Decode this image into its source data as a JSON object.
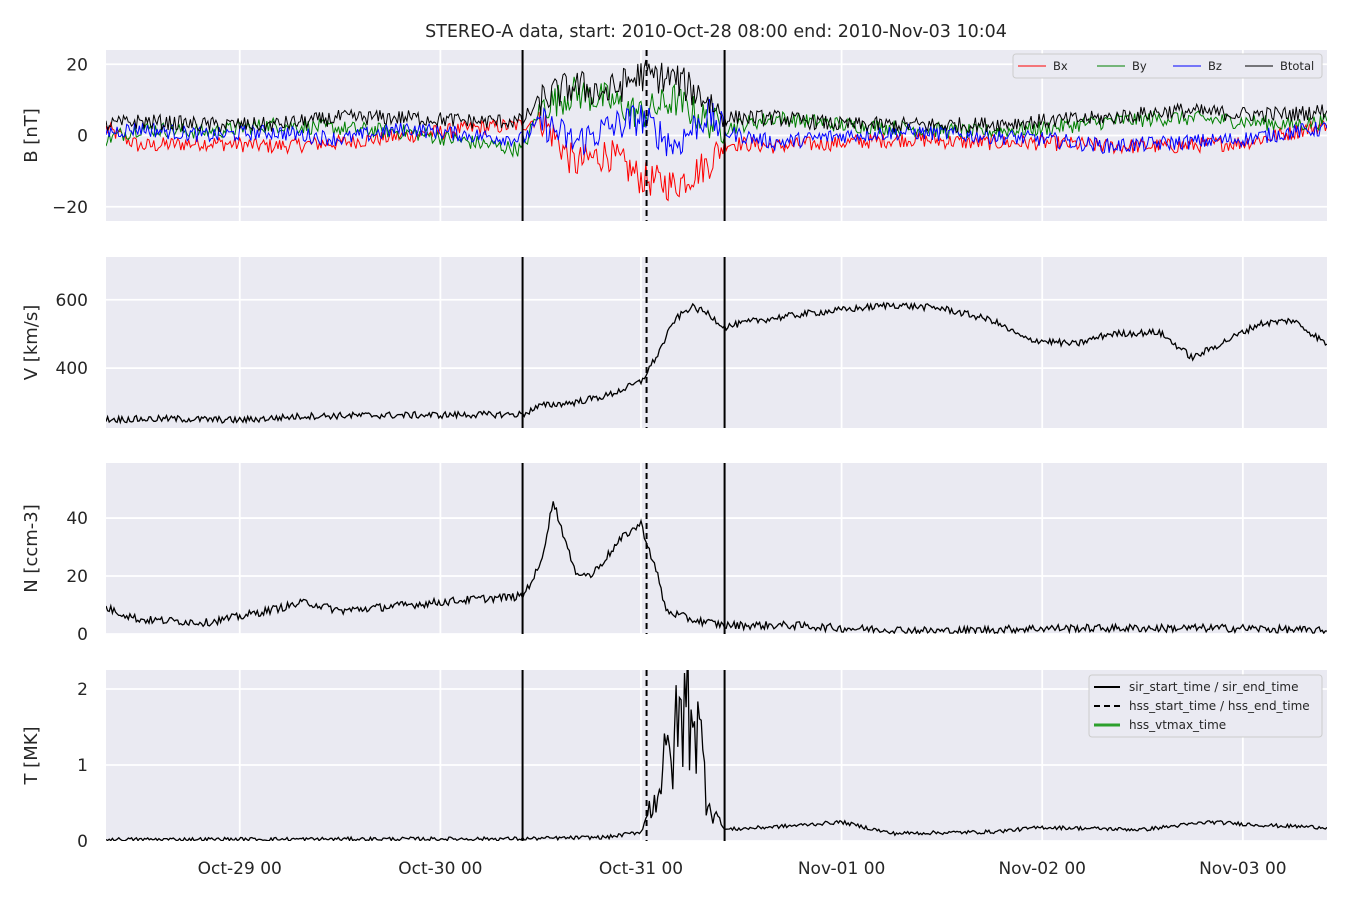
{
  "chart_data": {
    "type": "line",
    "title": "STEREO-A data, start: 2010-Oct-28 08:00  end: 2010-Nov-03 10:04",
    "x_range": [
      "2010-10-28 08:00",
      "2010-11-03 10:04"
    ],
    "x_ticks": [
      {
        "t": "2010-10-29 00:00",
        "label": "Oct-29 00"
      },
      {
        "t": "2010-10-30 00:00",
        "label": "Oct-30 00"
      },
      {
        "t": "2010-10-31 00:00",
        "label": "Oct-31 00"
      },
      {
        "t": "2010-11-01 00:00",
        "label": "Nov-01 00"
      },
      {
        "t": "2010-11-02 00:00",
        "label": "Nov-02 00"
      },
      {
        "t": "2010-11-03 00:00",
        "label": "Nov-03 00"
      }
    ],
    "grid": true,
    "markers": {
      "sir_start_time": "2010-10-30 09:50",
      "hss_start_time": "2010-10-31 00:40",
      "sir_end_time": "2010-10-31 10:00",
      "styles": {
        "sir": "solid",
        "hss": "dashed"
      }
    },
    "panels": [
      {
        "ylabel": "B [nT]",
        "ylim": [
          -24,
          24
        ],
        "yticks": [
          -20,
          0,
          20
        ],
        "legend_position": "top-right",
        "series": [
          {
            "name": "Bx",
            "color": "#ff0000",
            "points": [
              [
                "2010-10-28 08:00",
                2
              ],
              [
                "2010-10-28 12:00",
                -3
              ],
              [
                "2010-10-28 20:00",
                -2
              ],
              [
                "2010-10-29 04:00",
                -3
              ],
              [
                "2010-10-29 12:00",
                -2
              ],
              [
                "2010-10-29 20:00",
                0
              ],
              [
                "2010-10-30 04:00",
                2
              ],
              [
                "2010-10-30 09:50",
                3
              ],
              [
                "2010-10-30 12:00",
                5
              ],
              [
                "2010-10-30 16:00",
                -8
              ],
              [
                "2010-10-30 20:00",
                -5
              ],
              [
                "2010-10-31 00:00",
                -12
              ],
              [
                "2010-10-31 04:00",
                -14
              ],
              [
                "2010-10-31 08:00",
                -8
              ],
              [
                "2010-10-31 10:00",
                -2
              ],
              [
                "2010-10-31 16:00",
                -3
              ],
              [
                "2010-11-01 00:00",
                -2
              ],
              [
                "2010-11-01 08:00",
                -1
              ],
              [
                "2010-11-01 16:00",
                -2
              ],
              [
                "2010-11-02 00:00",
                -2
              ],
              [
                "2010-11-02 08:00",
                -3
              ],
              [
                "2010-11-02 16:00",
                -3
              ],
              [
                "2010-11-03 00:00",
                -2
              ],
              [
                "2010-11-03 06:00",
                1
              ],
              [
                "2010-11-03 10:04",
                3
              ]
            ]
          },
          {
            "name": "By",
            "color": "#008000",
            "points": [
              [
                "2010-10-28 08:00",
                -1
              ],
              [
                "2010-10-28 12:00",
                2
              ],
              [
                "2010-10-28 20:00",
                1
              ],
              [
                "2010-10-29 04:00",
                3
              ],
              [
                "2010-10-29 12:00",
                2
              ],
              [
                "2010-10-29 20:00",
                1
              ],
              [
                "2010-10-30 04:00",
                -2
              ],
              [
                "2010-10-30 09:50",
                -4
              ],
              [
                "2010-10-30 12:00",
                8
              ],
              [
                "2010-10-30 16:00",
                12
              ],
              [
                "2010-10-30 20:00",
                10
              ],
              [
                "2010-10-31 00:00",
                6
              ],
              [
                "2010-10-31 04:00",
                10
              ],
              [
                "2010-10-31 08:00",
                4
              ],
              [
                "2010-10-31 10:00",
                2
              ],
              [
                "2010-10-31 16:00",
                5
              ],
              [
                "2010-11-01 00:00",
                3
              ],
              [
                "2010-11-01 08:00",
                2
              ],
              [
                "2010-11-01 16:00",
                1
              ],
              [
                "2010-11-02 00:00",
                2
              ],
              [
                "2010-11-02 08:00",
                4
              ],
              [
                "2010-11-02 16:00",
                5
              ],
              [
                "2010-11-03 00:00",
                4
              ],
              [
                "2010-11-03 06:00",
                3
              ],
              [
                "2010-11-03 10:04",
                4
              ]
            ]
          },
          {
            "name": "Bz",
            "color": "#0000ff",
            "points": [
              [
                "2010-10-28 08:00",
                1
              ],
              [
                "2010-10-28 12:00",
                2
              ],
              [
                "2010-10-28 20:00",
                0
              ],
              [
                "2010-10-29 04:00",
                1
              ],
              [
                "2010-10-29 12:00",
                -1
              ],
              [
                "2010-10-29 20:00",
                2
              ],
              [
                "2010-10-30 04:00",
                0
              ],
              [
                "2010-10-30 09:50",
                -1
              ],
              [
                "2010-10-30 12:00",
                4
              ],
              [
                "2010-10-30 16:00",
                -2
              ],
              [
                "2010-10-30 20:00",
                2
              ],
              [
                "2010-10-31 00:00",
                5
              ],
              [
                "2010-10-31 04:00",
                -3
              ],
              [
                "2010-10-31 08:00",
                6
              ],
              [
                "2010-10-31 10:00",
                1
              ],
              [
                "2010-10-31 16:00",
                -2
              ],
              [
                "2010-11-01 00:00",
                0
              ],
              [
                "2010-11-01 08:00",
                1
              ],
              [
                "2010-11-01 16:00",
                0
              ],
              [
                "2010-11-02 00:00",
                -1
              ],
              [
                "2010-11-02 08:00",
                -3
              ],
              [
                "2010-11-02 16:00",
                -2
              ],
              [
                "2010-11-03 00:00",
                -1
              ],
              [
                "2010-11-03 06:00",
                1
              ],
              [
                "2010-11-03 10:04",
                2
              ]
            ]
          },
          {
            "name": "Btotal",
            "color": "#000000",
            "points": [
              [
                "2010-10-28 08:00",
                3
              ],
              [
                "2010-10-28 12:00",
                4
              ],
              [
                "2010-10-28 20:00",
                3
              ],
              [
                "2010-10-29 04:00",
                3
              ],
              [
                "2010-10-29 12:00",
                5
              ],
              [
                "2010-10-29 20:00",
                5
              ],
              [
                "2010-10-30 04:00",
                4
              ],
              [
                "2010-10-30 09:50",
                4
              ],
              [
                "2010-10-30 12:00",
                10
              ],
              [
                "2010-10-30 16:00",
                14
              ],
              [
                "2010-10-30 20:00",
                12
              ],
              [
                "2010-10-31 00:00",
                17
              ],
              [
                "2010-10-31 04:00",
                16
              ],
              [
                "2010-10-31 08:00",
                10
              ],
              [
                "2010-10-31 10:00",
                5
              ],
              [
                "2010-10-31 16:00",
                5
              ],
              [
                "2010-11-01 00:00",
                3
              ],
              [
                "2010-11-01 08:00",
                3
              ],
              [
                "2010-11-01 16:00",
                3
              ],
              [
                "2010-11-02 00:00",
                4
              ],
              [
                "2010-11-02 08:00",
                5
              ],
              [
                "2010-11-02 16:00",
                7
              ],
              [
                "2010-11-03 00:00",
                6
              ],
              [
                "2010-11-03 06:00",
                6
              ],
              [
                "2010-11-03 10:04",
                7
              ]
            ]
          }
        ]
      },
      {
        "ylabel": "V [km/s]",
        "ylim": [
          225,
          725
        ],
        "yticks": [
          400,
          600
        ],
        "series": [
          {
            "name": "",
            "color": "#000000",
            "points": [
              [
                "2010-10-28 08:00",
                250
              ],
              [
                "2010-10-28 16:00",
                252
              ],
              [
                "2010-10-29 00:00",
                248
              ],
              [
                "2010-10-29 08:00",
                260
              ],
              [
                "2010-10-29 16:00",
                262
              ],
              [
                "2010-10-30 00:00",
                263
              ],
              [
                "2010-10-30 09:50",
                265
              ],
              [
                "2010-10-30 12:00",
                290
              ],
              [
                "2010-10-30 16:00",
                300
              ],
              [
                "2010-10-30 20:00",
                320
              ],
              [
                "2010-10-31 00:00",
                360
              ],
              [
                "2010-10-31 02:00",
                440
              ],
              [
                "2010-10-31 04:00",
                540
              ],
              [
                "2010-10-31 06:00",
                580
              ],
              [
                "2010-10-31 08:00",
                560
              ],
              [
                "2010-10-31 10:00",
                520
              ],
              [
                "2010-10-31 14:00",
                540
              ],
              [
                "2010-10-31 20:00",
                560
              ],
              [
                "2010-11-01 00:00",
                570
              ],
              [
                "2010-11-01 06:00",
                585
              ],
              [
                "2010-11-01 12:00",
                575
              ],
              [
                "2010-11-01 18:00",
                540
              ],
              [
                "2010-11-01 22:00",
                485
              ],
              [
                "2010-11-02 04:00",
                470
              ],
              [
                "2010-11-02 08:00",
                500
              ],
              [
                "2010-11-02 14:00",
                505
              ],
              [
                "2010-11-02 18:00",
                430
              ],
              [
                "2010-11-02 22:00",
                480
              ],
              [
                "2010-11-03 02:00",
                530
              ],
              [
                "2010-11-03 06:00",
                540
              ],
              [
                "2010-11-03 10:04",
                470
              ]
            ]
          }
        ]
      },
      {
        "ylabel": "N [ccm-3]",
        "ylim": [
          0,
          59
        ],
        "yticks": [
          0,
          20,
          40
        ],
        "series": [
          {
            "name": "",
            "color": "#000000",
            "points": [
              [
                "2010-10-28 08:00",
                9
              ],
              [
                "2010-10-28 12:00",
                5
              ],
              [
                "2010-10-28 20:00",
                4
              ],
              [
                "2010-10-29 00:00",
                6
              ],
              [
                "2010-10-29 08:00",
                11
              ],
              [
                "2010-10-29 12:00",
                8
              ],
              [
                "2010-10-29 20:00",
                10
              ],
              [
                "2010-10-30 04:00",
                12
              ],
              [
                "2010-10-30 09:50",
                13
              ],
              [
                "2010-10-30 12:00",
                24
              ],
              [
                "2010-10-30 13:30",
                46
              ],
              [
                "2010-10-30 16:00",
                22
              ],
              [
                "2010-10-30 18:00",
                20
              ],
              [
                "2010-10-30 22:00",
                34
              ],
              [
                "2010-10-31 00:00",
                38
              ],
              [
                "2010-10-31 02:00",
                20
              ],
              [
                "2010-10-31 03:00",
                8
              ],
              [
                "2010-10-31 06:00",
                5
              ],
              [
                "2010-10-31 10:00",
                3
              ],
              [
                "2010-10-31 18:00",
                3
              ],
              [
                "2010-11-01 00:00",
                2
              ],
              [
                "2010-11-01 12:00",
                1
              ],
              [
                "2010-11-02 00:00",
                2
              ],
              [
                "2010-11-02 12:00",
                2
              ],
              [
                "2010-11-03 00:00",
                2
              ],
              [
                "2010-11-03 10:04",
                1
              ]
            ]
          }
        ]
      },
      {
        "ylabel": "T [MK]",
        "ylim": [
          0,
          2.25
        ],
        "yticks": [
          0,
          1,
          2
        ],
        "legend_position": "top-right",
        "legend": [
          "sir_start_time / sir_end_time",
          "hss_start_time / hss_end_time",
          "hss_vtmax_time"
        ],
        "legend_colors": [
          "#000000",
          "#000000",
          "#2ca02c"
        ],
        "series": [
          {
            "name": "",
            "color": "#000000",
            "points": [
              [
                "2010-10-28 08:00",
                0.02
              ],
              [
                "2010-10-30 09:50",
                0.03
              ],
              [
                "2010-10-30 20:00",
                0.05
              ],
              [
                "2010-10-31 00:00",
                0.12
              ],
              [
                "2010-10-31 02:00",
                0.7
              ],
              [
                "2010-10-31 04:00",
                1.3
              ],
              [
                "2010-10-31 06:00",
                2.0
              ],
              [
                "2010-10-31 08:00",
                0.6
              ],
              [
                "2010-10-31 10:00",
                0.15
              ],
              [
                "2010-10-31 18:00",
                0.2
              ],
              [
                "2010-11-01 00:00",
                0.25
              ],
              [
                "2010-11-01 06:00",
                0.1
              ],
              [
                "2010-11-01 18:00",
                0.12
              ],
              [
                "2010-11-02 00:00",
                0.18
              ],
              [
                "2010-11-02 12:00",
                0.15
              ],
              [
                "2010-11-02 20:00",
                0.25
              ],
              [
                "2010-11-03 04:00",
                0.2
              ],
              [
                "2010-11-03 10:04",
                0.18
              ]
            ]
          }
        ]
      }
    ]
  }
}
